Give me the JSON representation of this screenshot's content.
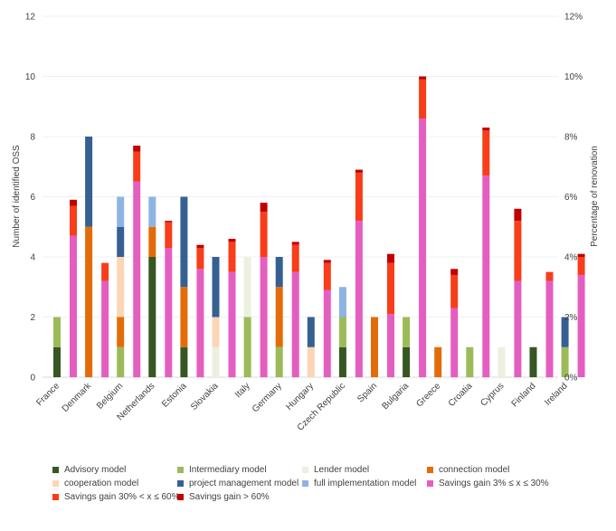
{
  "chart_data": {
    "type": "bar",
    "stacked": true,
    "categories": [
      "France",
      "Denmark",
      "Belgium",
      "Netherlands",
      "Estonia",
      "Slovakia",
      "Italy",
      "Germany",
      "Hungary",
      "Czech Republic",
      "Spain",
      "Bulgaria",
      "Greece",
      "Croatia",
      "Cyprus",
      "Finland",
      "Ireland"
    ],
    "ylabel": "Number of identified OSS",
    "y2label": "Percentage of renovation",
    "ylim": [
      0,
      12
    ],
    "y2lim": [
      0,
      12
    ],
    "yticks": [
      "0",
      "2",
      "4",
      "6",
      "8",
      "10",
      "12"
    ],
    "y2ticks": [
      "0%",
      "2%",
      "4%",
      "6%",
      "8%",
      "10%",
      "12%"
    ],
    "legend_position": "bottom",
    "bar_groups": [
      {
        "axis": "left",
        "series": [
          {
            "name": "Advisory model",
            "color": "#375623",
            "values": [
              1,
              0,
              0,
              4,
              1,
              0,
              0,
              0,
              0,
              1,
              0,
              1,
              0,
              0,
              0,
              1,
              0
            ]
          },
          {
            "name": "Intermediary model",
            "color": "#9bbb59",
            "values": [
              1,
              0,
              1,
              0,
              0,
              0,
              2,
              1,
              0,
              1,
              0,
              1,
              0,
              1,
              0,
              0,
              1
            ]
          },
          {
            "name": "Lender model",
            "color": "#ebf1de",
            "values": [
              0,
              0,
              0,
              0,
              0,
              1,
              2,
              0,
              0,
              0,
              0,
              0,
              0,
              0,
              1,
              0,
              0
            ]
          },
          {
            "name": "connection model",
            "color": "#e36c09",
            "values": [
              0,
              5,
              1,
              1,
              2,
              0,
              0,
              2,
              0,
              0,
              2,
              0,
              1,
              0,
              0,
              0,
              0
            ]
          },
          {
            "name": "cooperation model",
            "color": "#fcd5b5",
            "values": [
              0,
              0,
              2,
              0,
              0,
              1,
              0,
              0,
              1,
              0,
              0,
              0,
              0,
              0,
              0,
              0,
              0
            ]
          },
          {
            "name": "project management model",
            "color": "#366092",
            "values": [
              0,
              3,
              1,
              0,
              3,
              2,
              0,
              1,
              1,
              0,
              0,
              0,
              0,
              0,
              0,
              0,
              1
            ]
          },
          {
            "name": "full implementation model",
            "color": "#8db4e2",
            "values": [
              0,
              0,
              1,
              1,
              0,
              0,
              0,
              0,
              0,
              1,
              0,
              0,
              0,
              0,
              0,
              0,
              0
            ]
          }
        ]
      },
      {
        "axis": "right",
        "series": [
          {
            "name": "Savings gain 3% ≤ x ≤ 30%",
            "color": "#e45ec0",
            "values": [
              4.7,
              3.2,
              6.5,
              4.3,
              3.6,
              3.5,
              4.0,
              3.5,
              2.9,
              5.2,
              2.1,
              8.6,
              2.3,
              6.7,
              3.2,
              3.2,
              3.4
            ]
          },
          {
            "name": "Savings gain 30% < x ≤ 60%",
            "color": "#f83d1a",
            "values": [
              1.0,
              0.6,
              1.0,
              0.85,
              0.7,
              1.0,
              1.5,
              0.9,
              0.9,
              1.6,
              1.7,
              1.3,
              1.1,
              1.5,
              2.0,
              0.3,
              0.6
            ]
          },
          {
            "name": "Savings gain > 60%",
            "color": "#c00000",
            "values": [
              0.2,
              0,
              0.2,
              0.05,
              0.1,
              0.1,
              0.3,
              0.1,
              0.1,
              0.1,
              0.3,
              0.1,
              0.2,
              0.1,
              0.4,
              0,
              0.1
            ]
          }
        ]
      }
    ]
  }
}
